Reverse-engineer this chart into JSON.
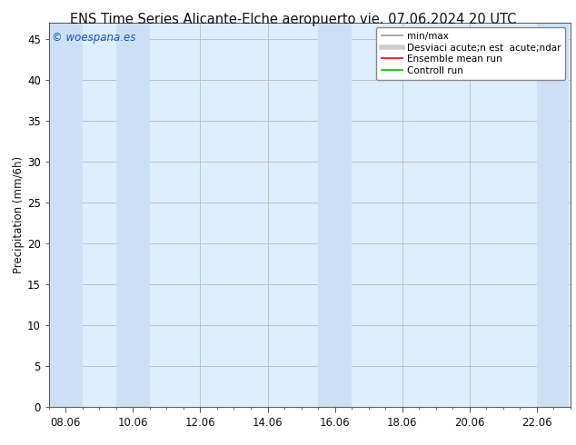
{
  "title_left": "ENS Time Series Alicante-Elche aeropuerto",
  "title_right": "vie. 07.06.2024 20 UTC",
  "ylabel": "Precipitation (mm/6h)",
  "watermark": "© woespana.es",
  "x_tick_labels": [
    "08.06",
    "10.06",
    "12.06",
    "14.06",
    "16.06",
    "18.06",
    "20.06",
    "22.06"
  ],
  "ylim": [
    0,
    47
  ],
  "yticks": [
    0,
    5,
    10,
    15,
    20,
    25,
    30,
    35,
    40,
    45
  ],
  "bg_color": "#ffffff",
  "plot_bg_color": "#ddeeff",
  "shade_color": "#cce0f5",
  "grid_color": "#bbbbbb",
  "legend_items": [
    {
      "label": "min/max",
      "color": "#999999",
      "lw": 1.5
    },
    {
      "label": "Desviaci acute;n est  acute;ndar",
      "color": "#bbbbbb",
      "lw": 4
    },
    {
      "label": "Ensemble mean run",
      "color": "#ff0000",
      "lw": 1.2
    },
    {
      "label": "Controll run",
      "color": "#00bb00",
      "lw": 1.2
    }
  ],
  "title_fontsize": 10.5,
  "tick_fontsize": 8.5,
  "ylabel_fontsize": 8.5,
  "watermark_color": "#1155bb",
  "watermark_fontsize": 8.5,
  "shade_bands": [
    [
      -0.5,
      0.5
    ],
    [
      1.5,
      2.5
    ],
    [
      7.5,
      8.5
    ],
    [
      14.0,
      14.95
    ]
  ],
  "x_tick_positions_days": [
    0,
    2,
    4,
    6,
    8,
    10,
    12,
    14
  ],
  "xlim_days": [
    -0.5,
    14.95
  ]
}
